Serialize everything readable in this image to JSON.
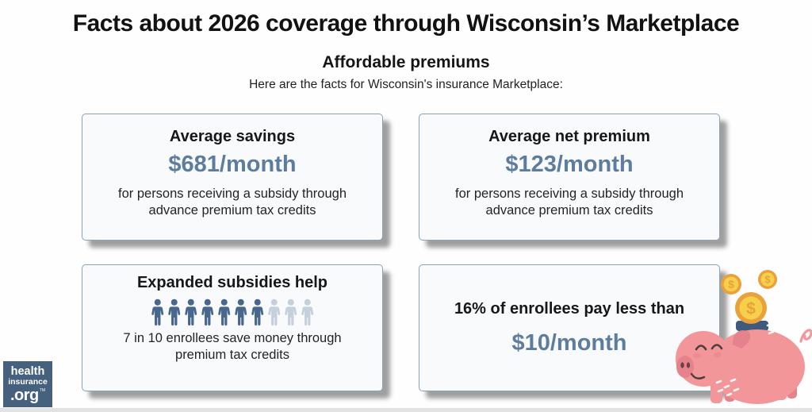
{
  "page": {
    "title": "Facts about 2026 coverage through Wisconsin’s Marketplace",
    "subtitle": "Affordable premiums",
    "tagline": "Here are the facts for Wisconsin's insurance Marketplace:"
  },
  "cards": [
    {
      "id": "average-savings",
      "title": "Average savings",
      "value": "$681/month",
      "description": "for persons receiving a subsidy through advance premium tax credits"
    },
    {
      "id": "average-net-premium",
      "title": "Average net premium",
      "value": "$123/month",
      "description": "for persons receiving a subsidy through advance premium tax credits"
    },
    {
      "id": "expanded-subsidies",
      "title": "Expanded subsidies help",
      "description": "7 in 10 enrollees save money through premium tax credits",
      "pictogram": {
        "icon": "person-icon",
        "total": 10,
        "highlighted": 7
      }
    },
    {
      "id": "pay-less-than",
      "title": "16% of enrollees pay less than",
      "value": "$10/month"
    }
  ],
  "logo": {
    "line1": "health",
    "line2": "insurance",
    "line3": ".org",
    "trademark": "TM"
  },
  "illustration": {
    "name": "piggy-bank-with-coins"
  },
  "colors": {
    "value_blue": "#5e7d9e",
    "person_dark": "#47688c",
    "person_light": "#c5d0dc",
    "logo_bg": "#45617e",
    "card_border": "#8aa2b6",
    "card_bg": "#f8fafb",
    "pig_pink": "#f29699",
    "pig_dark_pink": "#e5828b",
    "coin_gold": "#f6cf4b",
    "coin_rim": "#e9a23b",
    "slot_navy": "#3e5a7c"
  }
}
